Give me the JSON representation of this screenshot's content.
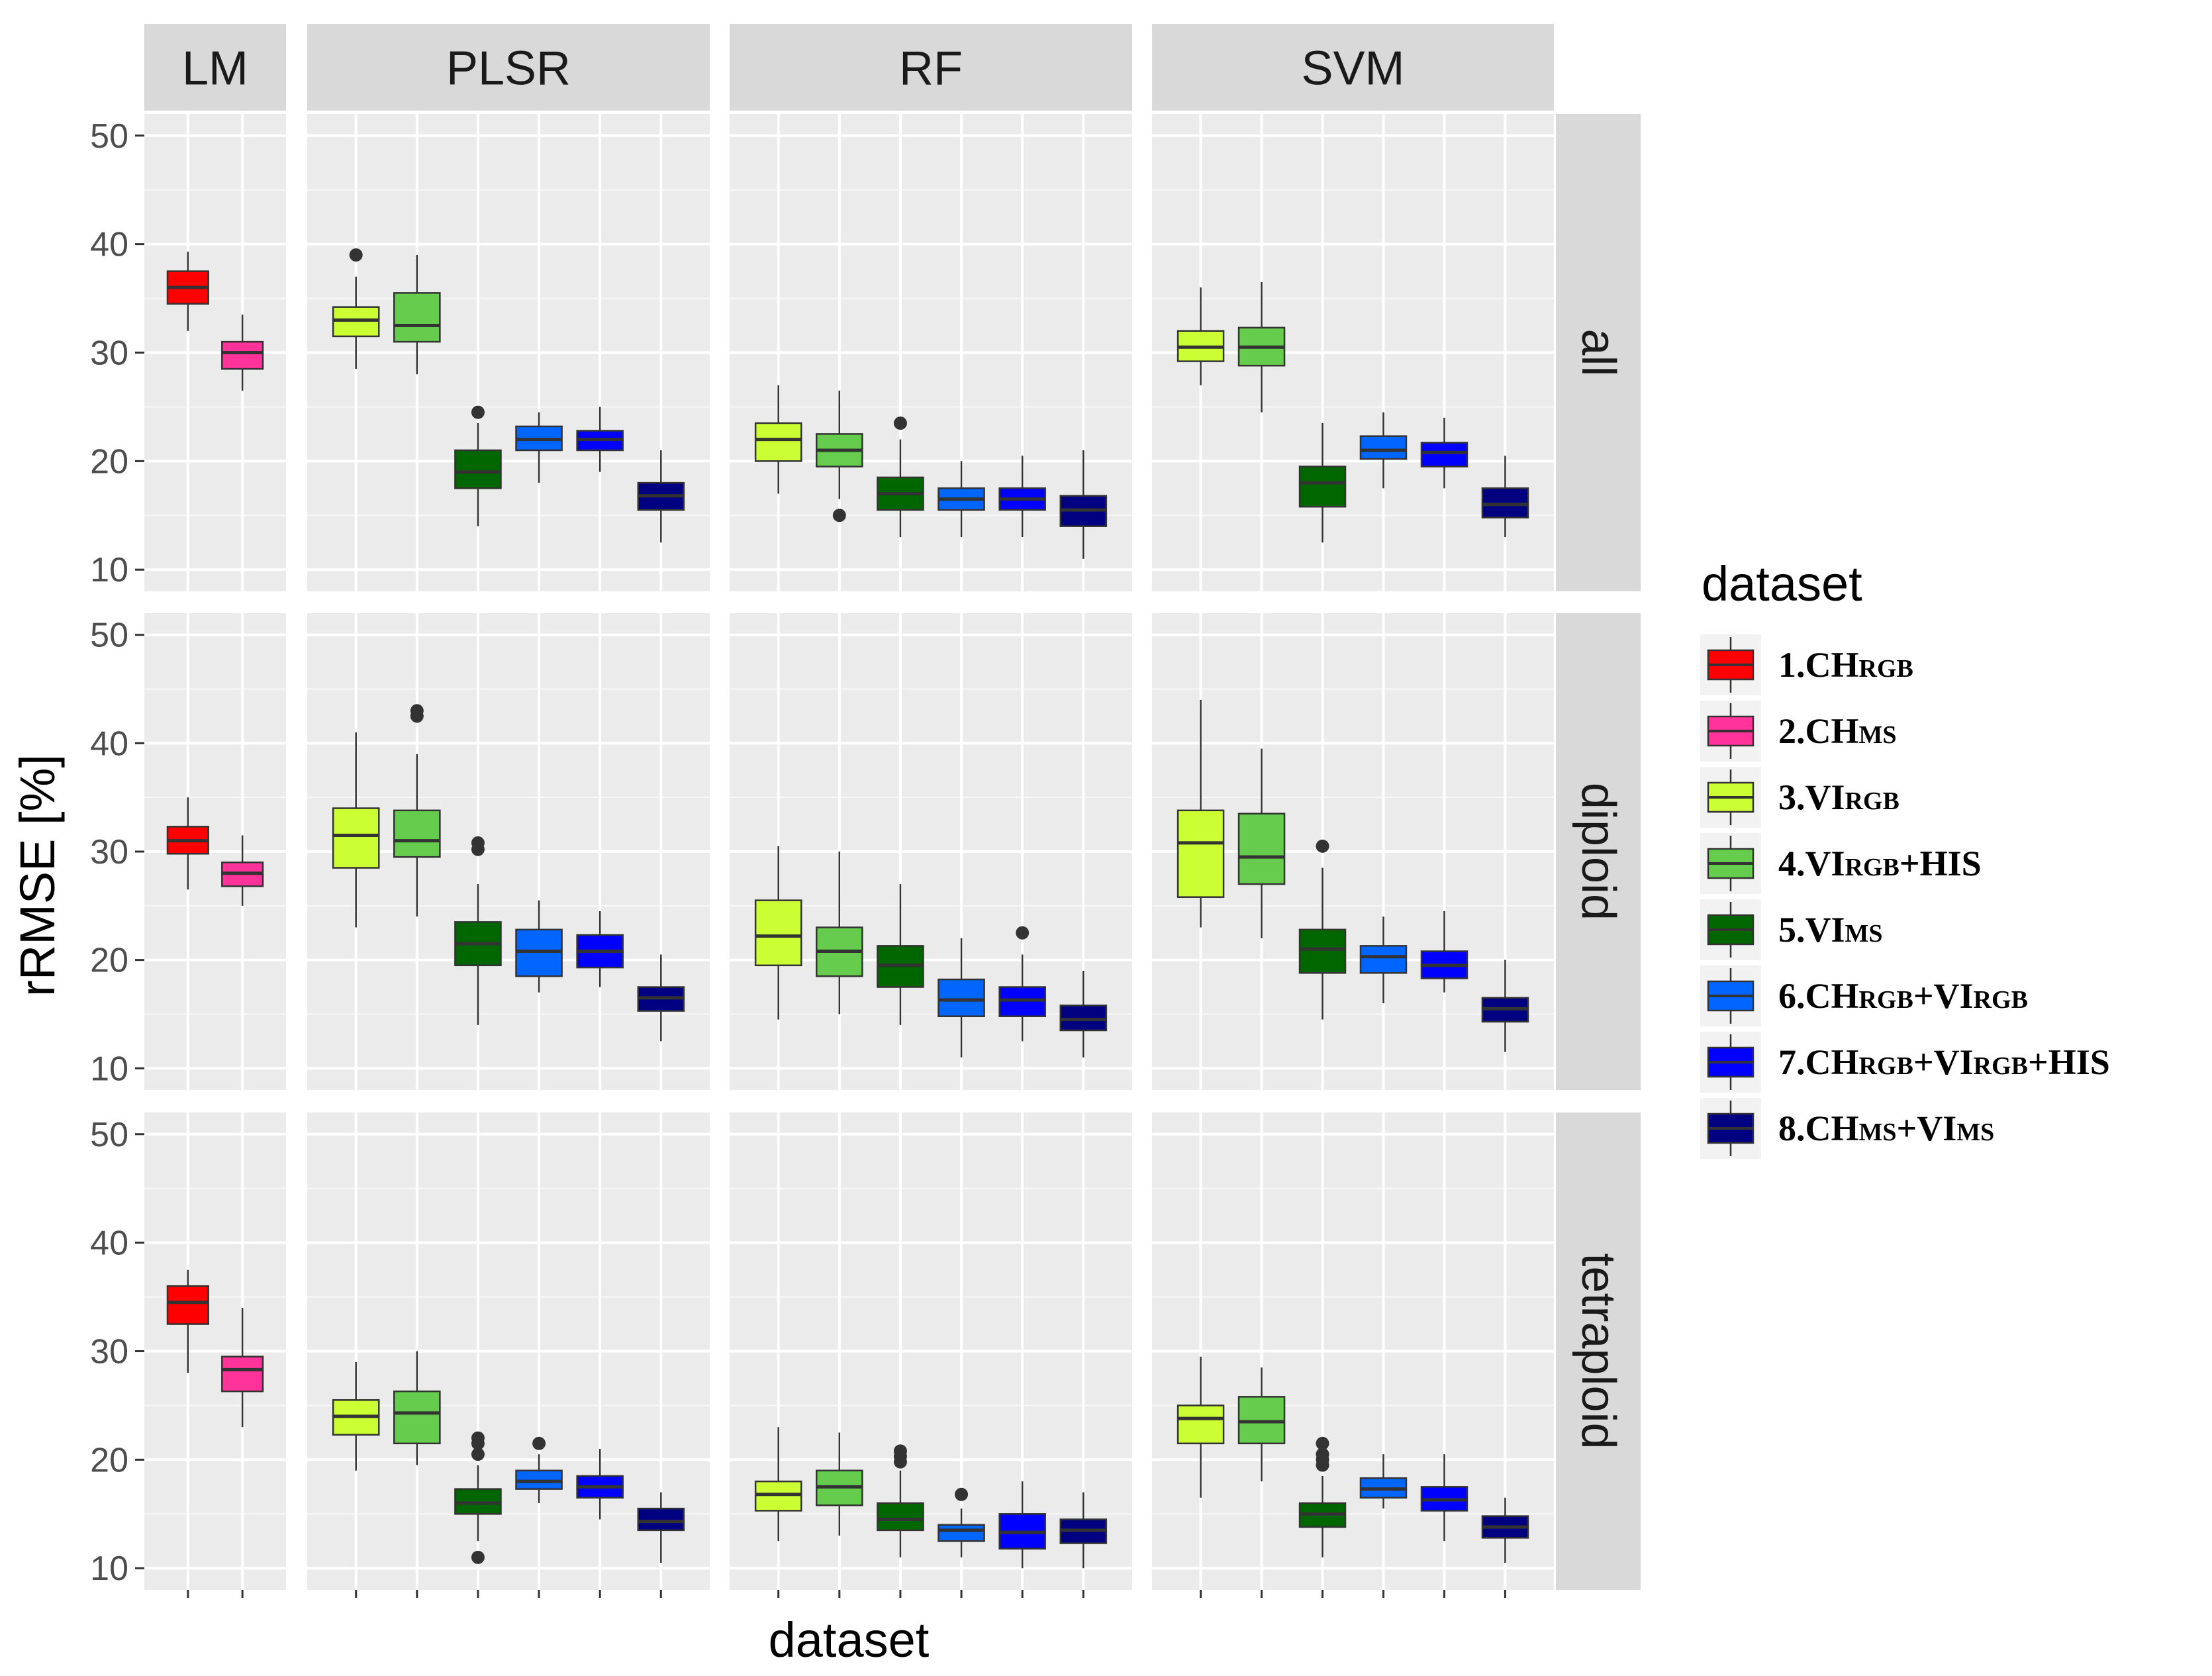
{
  "chart_data": {
    "type": "boxplot",
    "title": "",
    "xlabel": "dataset",
    "ylabel": "rRMSE [%]",
    "ylim": [
      8,
      52
    ],
    "y_ticks": [
      10,
      20,
      30,
      40,
      50
    ],
    "facet_cols": [
      "LM",
      "PLSR",
      "RF",
      "SVM"
    ],
    "facet_rows": [
      "all",
      "diploid",
      "tetraploid"
    ],
    "legend": {
      "title": "dataset",
      "position": "right",
      "entries": [
        {
          "id": 1,
          "prefix": "1.",
          "parts": [
            [
              "CH",
              "n"
            ],
            [
              "RGB",
              "s"
            ]
          ],
          "color": "#ff0000"
        },
        {
          "id": 2,
          "prefix": "2.",
          "parts": [
            [
              "CH",
              "n"
            ],
            [
              "MS",
              "s"
            ]
          ],
          "color": "#ff3399"
        },
        {
          "id": 3,
          "prefix": "3.",
          "parts": [
            [
              "VI",
              "n"
            ],
            [
              "RGB",
              "s"
            ]
          ],
          "color": "#ccff33"
        },
        {
          "id": 4,
          "prefix": "4.",
          "parts": [
            [
              "VI",
              "n"
            ],
            [
              "RGB",
              "s"
            ],
            [
              "+HIS",
              "n"
            ]
          ],
          "color": "#66cc4d"
        },
        {
          "id": 5,
          "prefix": "5.",
          "parts": [
            [
              "VI",
              "n"
            ],
            [
              "MS",
              "s"
            ]
          ],
          "color": "#006600"
        },
        {
          "id": 6,
          "prefix": "6.",
          "parts": [
            [
              "CH",
              "n"
            ],
            [
              "RGB",
              "s"
            ],
            [
              "+VI",
              "n"
            ],
            [
              "RGB",
              "s"
            ]
          ],
          "color": "#0066ff"
        },
        {
          "id": 7,
          "prefix": "7.",
          "parts": [
            [
              "CH",
              "n"
            ],
            [
              "RGB",
              "s"
            ],
            [
              "+VI",
              "n"
            ],
            [
              "RGB",
              "s"
            ],
            [
              "+HIS",
              "n"
            ]
          ],
          "color": "#0000ff"
        },
        {
          "id": 8,
          "prefix": "8.",
          "parts": [
            [
              "CH",
              "n"
            ],
            [
              "MS",
              "s"
            ],
            [
              "+VI",
              "n"
            ],
            [
              "MS",
              "s"
            ]
          ],
          "color": "#000080"
        }
      ]
    },
    "panels": [
      {
        "row": "all",
        "col": "LM",
        "series": [
          1,
          2
        ],
        "boxes": [
          {
            "min": 32.0,
            "q1": 34.5,
            "median": 36.0,
            "q3": 37.5,
            "max": 39.3,
            "outliers": []
          },
          {
            "min": 26.5,
            "q1": 28.5,
            "median": 30.0,
            "q3": 31.0,
            "max": 33.5,
            "outliers": []
          }
        ]
      },
      {
        "row": "all",
        "col": "PLSR",
        "series": [
          3,
          4,
          5,
          6,
          7,
          8
        ],
        "boxes": [
          {
            "min": 28.5,
            "q1": 31.5,
            "median": 33.0,
            "q3": 34.2,
            "max": 37.0,
            "outliers": [
              39.0
            ]
          },
          {
            "min": 28.0,
            "q1": 31.0,
            "median": 32.5,
            "q3": 35.5,
            "max": 39.0,
            "outliers": []
          },
          {
            "min": 14.0,
            "q1": 17.5,
            "median": 19.0,
            "q3": 21.0,
            "max": 23.5,
            "outliers": [
              24.5
            ]
          },
          {
            "min": 18.0,
            "q1": 21.0,
            "median": 22.0,
            "q3": 23.2,
            "max": 24.5,
            "outliers": []
          },
          {
            "min": 19.0,
            "q1": 21.0,
            "median": 22.0,
            "q3": 22.8,
            "max": 25.0,
            "outliers": []
          },
          {
            "min": 12.5,
            "q1": 15.5,
            "median": 16.8,
            "q3": 18.0,
            "max": 21.0,
            "outliers": []
          }
        ]
      },
      {
        "row": "all",
        "col": "RF",
        "series": [
          3,
          4,
          5,
          6,
          7,
          8
        ],
        "boxes": [
          {
            "min": 17.0,
            "q1": 20.0,
            "median": 22.0,
            "q3": 23.5,
            "max": 27.0,
            "outliers": []
          },
          {
            "min": 16.5,
            "q1": 19.5,
            "median": 21.0,
            "q3": 22.5,
            "max": 26.5,
            "outliers": [
              15.0
            ]
          },
          {
            "min": 13.0,
            "q1": 15.5,
            "median": 17.0,
            "q3": 18.5,
            "max": 22.0,
            "outliers": [
              23.5
            ]
          },
          {
            "min": 13.0,
            "q1": 15.5,
            "median": 16.5,
            "q3": 17.5,
            "max": 20.0,
            "outliers": []
          },
          {
            "min": 13.0,
            "q1": 15.5,
            "median": 16.5,
            "q3": 17.5,
            "max": 20.5,
            "outliers": []
          },
          {
            "min": 11.0,
            "q1": 14.0,
            "median": 15.5,
            "q3": 16.8,
            "max": 21.0,
            "outliers": []
          }
        ]
      },
      {
        "row": "all",
        "col": "SVM",
        "series": [
          3,
          4,
          5,
          6,
          7,
          8
        ],
        "boxes": [
          {
            "min": 27.0,
            "q1": 29.2,
            "median": 30.5,
            "q3": 32.0,
            "max": 36.0,
            "outliers": []
          },
          {
            "min": 24.5,
            "q1": 28.8,
            "median": 30.5,
            "q3": 32.3,
            "max": 36.5,
            "outliers": []
          },
          {
            "min": 12.5,
            "q1": 15.8,
            "median": 18.0,
            "q3": 19.5,
            "max": 23.5,
            "outliers": []
          },
          {
            "min": 17.5,
            "q1": 20.2,
            "median": 21.0,
            "q3": 22.3,
            "max": 24.5,
            "outliers": []
          },
          {
            "min": 17.5,
            "q1": 19.5,
            "median": 20.8,
            "q3": 21.7,
            "max": 24.0,
            "outliers": []
          },
          {
            "min": 13.0,
            "q1": 14.8,
            "median": 16.0,
            "q3": 17.5,
            "max": 20.5,
            "outliers": []
          }
        ]
      },
      {
        "row": "diploid",
        "col": "LM",
        "series": [
          1,
          2
        ],
        "boxes": [
          {
            "min": 26.5,
            "q1": 29.8,
            "median": 31.0,
            "q3": 32.3,
            "max": 35.0,
            "outliers": []
          },
          {
            "min": 25.0,
            "q1": 26.8,
            "median": 28.0,
            "q3": 29.0,
            "max": 31.5,
            "outliers": []
          }
        ]
      },
      {
        "row": "diploid",
        "col": "PLSR",
        "series": [
          3,
          4,
          5,
          6,
          7,
          8
        ],
        "boxes": [
          {
            "min": 23.0,
            "q1": 28.5,
            "median": 31.5,
            "q3": 34.0,
            "max": 41.0,
            "outliers": []
          },
          {
            "min": 24.0,
            "q1": 29.5,
            "median": 31.0,
            "q3": 33.8,
            "max": 39.0,
            "outliers": [
              42.5,
              43.0
            ]
          },
          {
            "min": 14.0,
            "q1": 19.5,
            "median": 21.5,
            "q3": 23.5,
            "max": 27.0,
            "outliers": [
              30.2,
              30.8
            ]
          },
          {
            "min": 17.0,
            "q1": 18.5,
            "median": 20.8,
            "q3": 22.8,
            "max": 25.5,
            "outliers": []
          },
          {
            "min": 17.5,
            "q1": 19.3,
            "median": 20.8,
            "q3": 22.3,
            "max": 24.5,
            "outliers": []
          },
          {
            "min": 12.5,
            "q1": 15.3,
            "median": 16.5,
            "q3": 17.5,
            "max": 20.5,
            "outliers": []
          }
        ]
      },
      {
        "row": "diploid",
        "col": "RF",
        "series": [
          3,
          4,
          5,
          6,
          7,
          8
        ],
        "boxes": [
          {
            "min": 14.5,
            "q1": 19.5,
            "median": 22.2,
            "q3": 25.5,
            "max": 30.5,
            "outliers": []
          },
          {
            "min": 15.0,
            "q1": 18.5,
            "median": 20.8,
            "q3": 23.0,
            "max": 30.0,
            "outliers": []
          },
          {
            "min": 14.0,
            "q1": 17.5,
            "median": 19.5,
            "q3": 21.3,
            "max": 27.0,
            "outliers": []
          },
          {
            "min": 11.0,
            "q1": 14.8,
            "median": 16.3,
            "q3": 18.2,
            "max": 22.0,
            "outliers": []
          },
          {
            "min": 12.5,
            "q1": 14.8,
            "median": 16.3,
            "q3": 17.5,
            "max": 20.5,
            "outliers": [
              22.5
            ]
          },
          {
            "min": 11.0,
            "q1": 13.5,
            "median": 14.5,
            "q3": 15.8,
            "max": 19.0,
            "outliers": []
          }
        ]
      },
      {
        "row": "diploid",
        "col": "SVM",
        "series": [
          3,
          4,
          5,
          6,
          7,
          8
        ],
        "boxes": [
          {
            "min": 23.0,
            "q1": 25.8,
            "median": 30.8,
            "q3": 33.8,
            "max": 44.0,
            "outliers": []
          },
          {
            "min": 22.0,
            "q1": 27.0,
            "median": 29.5,
            "q3": 33.5,
            "max": 39.5,
            "outliers": []
          },
          {
            "min": 14.5,
            "q1": 18.8,
            "median": 21.0,
            "q3": 22.8,
            "max": 28.5,
            "outliers": [
              30.5
            ]
          },
          {
            "min": 16.0,
            "q1": 18.8,
            "median": 20.3,
            "q3": 21.3,
            "max": 24.0,
            "outliers": []
          },
          {
            "min": 17.0,
            "q1": 18.3,
            "median": 19.5,
            "q3": 20.8,
            "max": 24.5,
            "outliers": []
          },
          {
            "min": 11.5,
            "q1": 14.3,
            "median": 15.5,
            "q3": 16.5,
            "max": 20.0,
            "outliers": []
          }
        ]
      },
      {
        "row": "tetraploid",
        "col": "LM",
        "series": [
          1,
          2
        ],
        "boxes": [
          {
            "min": 28.0,
            "q1": 32.5,
            "median": 34.5,
            "q3": 36.0,
            "max": 37.5,
            "outliers": []
          },
          {
            "min": 23.0,
            "q1": 26.3,
            "median": 28.3,
            "q3": 29.5,
            "max": 34.0,
            "outliers": []
          }
        ]
      },
      {
        "row": "tetraploid",
        "col": "PLSR",
        "series": [
          3,
          4,
          5,
          6,
          7,
          8
        ],
        "boxes": [
          {
            "min": 19.0,
            "q1": 22.3,
            "median": 24.0,
            "q3": 25.5,
            "max": 29.0,
            "outliers": []
          },
          {
            "min": 19.5,
            "q1": 21.5,
            "median": 24.3,
            "q3": 26.3,
            "max": 30.0,
            "outliers": []
          },
          {
            "min": 12.5,
            "q1": 15.0,
            "median": 16.0,
            "q3": 17.3,
            "max": 19.5,
            "outliers": [
              11.0,
              20.5,
              21.5,
              22.0
            ]
          },
          {
            "min": 16.0,
            "q1": 17.3,
            "median": 18.0,
            "q3": 19.0,
            "max": 20.5,
            "outliers": [
              21.5
            ]
          },
          {
            "min": 14.5,
            "q1": 16.5,
            "median": 17.5,
            "q3": 18.5,
            "max": 21.0,
            "outliers": []
          },
          {
            "min": 10.5,
            "q1": 13.5,
            "median": 14.3,
            "q3": 15.5,
            "max": 17.0,
            "outliers": []
          }
        ]
      },
      {
        "row": "tetraploid",
        "col": "RF",
        "series": [
          3,
          4,
          5,
          6,
          7,
          8
        ],
        "boxes": [
          {
            "min": 12.5,
            "q1": 15.3,
            "median": 16.8,
            "q3": 18.0,
            "max": 23.0,
            "outliers": []
          },
          {
            "min": 13.0,
            "q1": 15.8,
            "median": 17.5,
            "q3": 19.0,
            "max": 22.5,
            "outliers": []
          },
          {
            "min": 11.0,
            "q1": 13.5,
            "median": 14.5,
            "q3": 16.0,
            "max": 19.0,
            "outliers": [
              19.8,
              20.3,
              20.8
            ]
          },
          {
            "min": 11.0,
            "q1": 12.5,
            "median": 13.5,
            "q3": 14.0,
            "max": 15.5,
            "outliers": [
              16.8
            ]
          },
          {
            "min": 10.0,
            "q1": 11.8,
            "median": 13.3,
            "q3": 15.0,
            "max": 18.0,
            "outliers": []
          },
          {
            "min": 10.0,
            "q1": 12.3,
            "median": 13.5,
            "q3": 14.5,
            "max": 17.0,
            "outliers": []
          }
        ]
      },
      {
        "row": "tetraploid",
        "col": "SVM",
        "series": [
          3,
          4,
          5,
          6,
          7,
          8
        ],
        "boxes": [
          {
            "min": 16.5,
            "q1": 21.5,
            "median": 23.8,
            "q3": 25.0,
            "max": 29.5,
            "outliers": []
          },
          {
            "min": 18.0,
            "q1": 21.5,
            "median": 23.5,
            "q3": 25.8,
            "max": 28.5,
            "outliers": []
          },
          {
            "min": 11.0,
            "q1": 13.8,
            "median": 15.0,
            "q3": 16.0,
            "max": 18.5,
            "outliers": [
              19.5,
              20.0,
              20.5,
              21.5
            ]
          },
          {
            "min": 15.5,
            "q1": 16.5,
            "median": 17.3,
            "q3": 18.3,
            "max": 20.5,
            "outliers": []
          },
          {
            "min": 12.5,
            "q1": 15.3,
            "median": 16.3,
            "q3": 17.5,
            "max": 20.5,
            "outliers": []
          },
          {
            "min": 10.5,
            "q1": 12.8,
            "median": 13.8,
            "q3": 14.8,
            "max": 16.5,
            "outliers": []
          }
        ]
      }
    ]
  }
}
